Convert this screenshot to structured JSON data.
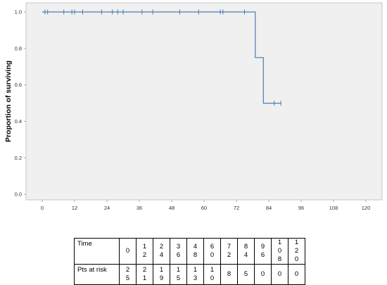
{
  "chart_data": {
    "type": "line",
    "title": "",
    "xlabel": "",
    "ylabel": "Proportion of surviving",
    "xlim": [
      -6,
      126
    ],
    "ylim": [
      -0.03,
      1.05
    ],
    "xticks": [
      0,
      12,
      24,
      36,
      48,
      60,
      72,
      84,
      96,
      108,
      120
    ],
    "yticks": [
      "0.0",
      "0.2",
      "0.4",
      "0.6",
      "0.8",
      "1.0"
    ],
    "grid": false,
    "series": [
      {
        "step": [
          [
            0,
            1.0
          ],
          [
            79,
            1.0
          ],
          [
            79,
            0.75
          ],
          [
            82,
            0.75
          ],
          [
            82,
            0.5
          ],
          [
            88.5,
            0.5
          ]
        ],
        "censored": [
          1,
          2,
          8,
          11,
          12,
          15,
          22,
          26,
          28,
          30,
          37,
          41,
          51,
          58,
          66,
          67,
          75,
          86,
          88.5
        ],
        "color": "#4a7eb0"
      }
    ]
  },
  "risk_table": {
    "time_label": "Time",
    "risk_label": "Pts at risk",
    "times": [
      "0",
      "12",
      "24",
      "36",
      "48",
      "60",
      "72",
      "84",
      "96",
      "108",
      "120"
    ],
    "at_risk": [
      "25",
      "21",
      "19",
      "15",
      "13",
      "10",
      "8",
      "5",
      "0",
      "0",
      "0"
    ]
  }
}
